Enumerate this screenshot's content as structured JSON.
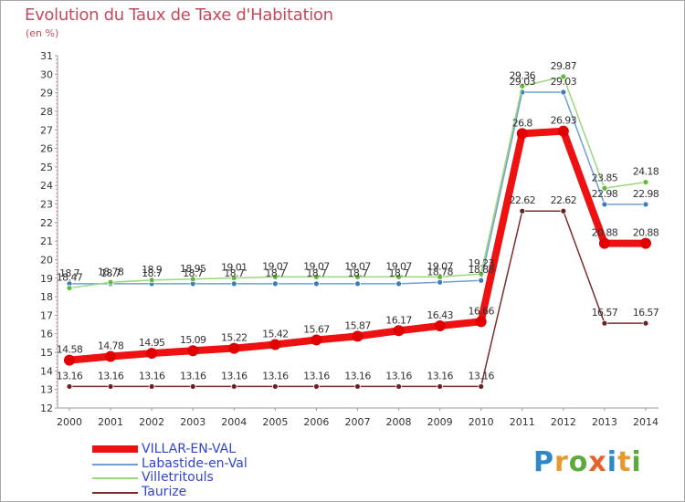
{
  "title": "Evolution du Taux de Taxe d'Habitation",
  "unit_label": "(en %)",
  "watermark": {
    "letters": [
      "P",
      "r",
      "o",
      "x",
      "i",
      "t",
      "i"
    ],
    "colors": [
      "#2f87c8",
      "#e69a2e",
      "#5cab3a",
      "#e8612c",
      "#2f87c8",
      "#e69a2e",
      "#5cab3a"
    ]
  },
  "chart_data": {
    "type": "line",
    "x": [
      "2000",
      "2001",
      "2002",
      "2003",
      "2004",
      "2005",
      "2006",
      "2007",
      "2008",
      "2009",
      "2010",
      "2011",
      "2012",
      "2013",
      "2014"
    ],
    "ylim": [
      12,
      31
    ],
    "yticks": [
      "12",
      "13",
      "14",
      "15",
      "16",
      "17",
      "18",
      "19",
      "20",
      "21",
      "22",
      "23",
      "24",
      "25",
      "26",
      "27",
      "28",
      "29",
      "30",
      "31"
    ],
    "grid": false,
    "legend_position": "bottom-left",
    "series": [
      {
        "name": "Taurize",
        "color": "#7b2c2c",
        "marker_color": "#6b1f1f",
        "values": [
          13.16,
          13.16,
          13.16,
          13.16,
          13.16,
          13.16,
          13.16,
          13.16,
          13.16,
          13.16,
          13.16,
          22.62,
          22.62,
          16.57,
          16.57
        ],
        "labels": [
          "13.16",
          "13.16",
          "13.16",
          "13.16",
          "13.16",
          "13.16",
          "13.16",
          "13.16",
          "13.16",
          "13.16",
          "13.16",
          "22.62",
          "22.62",
          "16.57",
          "16.57"
        ]
      },
      {
        "name": "Labastide-en-Val",
        "color": "#6fa0d0",
        "marker_color": "#3c7bc0",
        "values": [
          18.7,
          18.7,
          18.7,
          18.7,
          18.7,
          18.7,
          18.7,
          18.7,
          18.7,
          18.78,
          18.88,
          29.03,
          29.03,
          22.98,
          22.98
        ],
        "labels": [
          "18.7",
          "18.7",
          "18.7",
          "18.7",
          "18.7",
          "18.7",
          "18.7",
          "18.7",
          "18.7",
          "18.78",
          "18.88",
          "29.03",
          "29.03",
          "22.98",
          "22.98"
        ]
      },
      {
        "name": "Villetritouls",
        "color": "#9ad67a",
        "marker_color": "#62b83a",
        "values": [
          18.47,
          18.78,
          18.9,
          18.95,
          19.01,
          19.07,
          19.07,
          19.07,
          19.07,
          19.07,
          19.23,
          29.36,
          29.87,
          23.85,
          24.18
        ],
        "labels": [
          "18.47",
          "18.78",
          "18.9",
          "18.95",
          "19.01",
          "19.07",
          "19.07",
          "19.07",
          "19.07",
          "19.07",
          "19.23",
          "29.36",
          "29.87",
          "23.85",
          "24.18"
        ]
      },
      {
        "name": "VILLAR-EN-VAL",
        "color": "#ee1111",
        "marker_color": "#e00000",
        "values": [
          14.58,
          14.78,
          14.95,
          15.09,
          15.22,
          15.42,
          15.67,
          15.87,
          16.17,
          16.43,
          16.66,
          26.8,
          26.93,
          20.88,
          20.88
        ],
        "labels": [
          "14.58",
          "14.78",
          "14.95",
          "15.09",
          "15.22",
          "15.42",
          "15.67",
          "15.87",
          "16.17",
          "16.43",
          "16.66",
          "26.8",
          "26.93",
          "20.88",
          "20.88"
        ]
      }
    ],
    "legend_order": [
      "VILLAR-EN-VAL",
      "Labastide-en-Val",
      "Villetritouls",
      "Taurize"
    ]
  }
}
